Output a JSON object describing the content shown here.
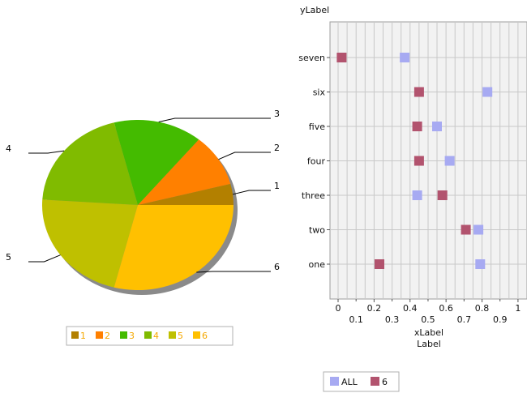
{
  "chart_data": [
    {
      "type": "pie",
      "title": "",
      "slices": [
        {
          "label": "1",
          "value": 4.0,
          "color": "#b38000"
        },
        {
          "label": "2",
          "value": 10.0,
          "color": "#ff8000"
        },
        {
          "label": "3",
          "value": 15.0,
          "color": "#44bb00"
        },
        {
          "label": "4",
          "value": 20.0,
          "color": "#80bb00"
        },
        {
          "label": "5",
          "value": 22.0,
          "color": "#bfc000"
        },
        {
          "label": "6",
          "value": 29.0,
          "color": "#ffc000"
        }
      ],
      "legend": [
        "1",
        "2",
        "3",
        "4",
        "5",
        "6"
      ],
      "legend_position": "bottom",
      "shadow": true
    },
    {
      "type": "scatter",
      "title": "",
      "ylabel": "yLabel",
      "xlabel": "xLabel",
      "xlabel_sub": "Label",
      "categories": [
        "one",
        "two",
        "three",
        "four",
        "five",
        "six",
        "seven"
      ],
      "x_ticks_top": [
        "0",
        "0.2",
        "0.4",
        "0.6",
        "0.8",
        "1"
      ],
      "x_ticks_bottom": [
        "0.1",
        "0.3",
        "0.5",
        "0.7",
        "0.9"
      ],
      "xlim": [
        0,
        1.05
      ],
      "grid": true,
      "legend_position": "bottom",
      "series": [
        {
          "name": "ALL",
          "color": "#a7aaf2",
          "y": [
            "seven",
            "six",
            "five",
            "four",
            "three",
            "two",
            "one"
          ],
          "x": [
            0.37,
            0.83,
            0.55,
            0.62,
            0.44,
            0.78,
            0.79
          ]
        },
        {
          "name": "6",
          "color": "#b2536e",
          "y": [
            "seven",
            "six",
            "five",
            "four",
            "three",
            "two",
            "one"
          ],
          "x": [
            0.02,
            0.45,
            0.44,
            0.45,
            0.58,
            0.71,
            0.23
          ]
        }
      ]
    }
  ]
}
